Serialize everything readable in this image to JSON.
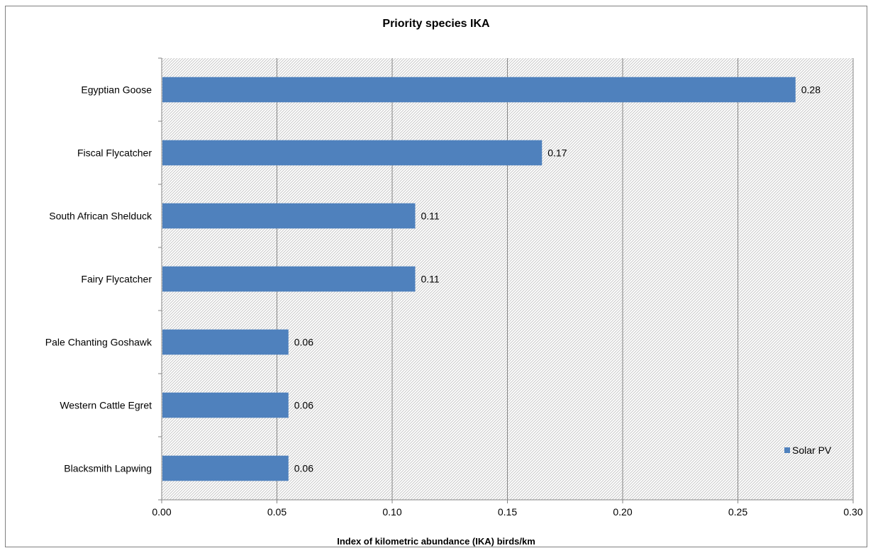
{
  "chart_data": {
    "type": "bar",
    "orientation": "horizontal",
    "title": "Priority species IKA",
    "xlabel": "Index of kilometric abundance (IKA) birds/km",
    "ylabel": "",
    "categories": [
      "Egyptian Goose",
      "Fiscal Flycatcher",
      "South African Shelduck",
      "Fairy Flycatcher",
      "Pale Chanting Goshawk",
      "Western Cattle Egret",
      "Blacksmith Lapwing"
    ],
    "series": [
      {
        "name": "Solar PV",
        "values": [
          0.275,
          0.165,
          0.11,
          0.11,
          0.055,
          0.055,
          0.055
        ],
        "labels": [
          "0.28",
          "0.17",
          "0.11",
          "0.11",
          "0.06",
          "0.06",
          "0.06"
        ],
        "color": "#4f81bd"
      }
    ],
    "xlim": [
      0,
      0.3
    ],
    "xticks": [
      0,
      0.05,
      0.1,
      0.15,
      0.2,
      0.25,
      0.3
    ],
    "xtick_labels": [
      "0.00",
      "0.05",
      "0.10",
      "0.15",
      "0.20",
      "0.25",
      "0.30"
    ],
    "grid": "vertical",
    "plot_background": "diagonal-hatch",
    "legend_position": "bottom-right"
  }
}
